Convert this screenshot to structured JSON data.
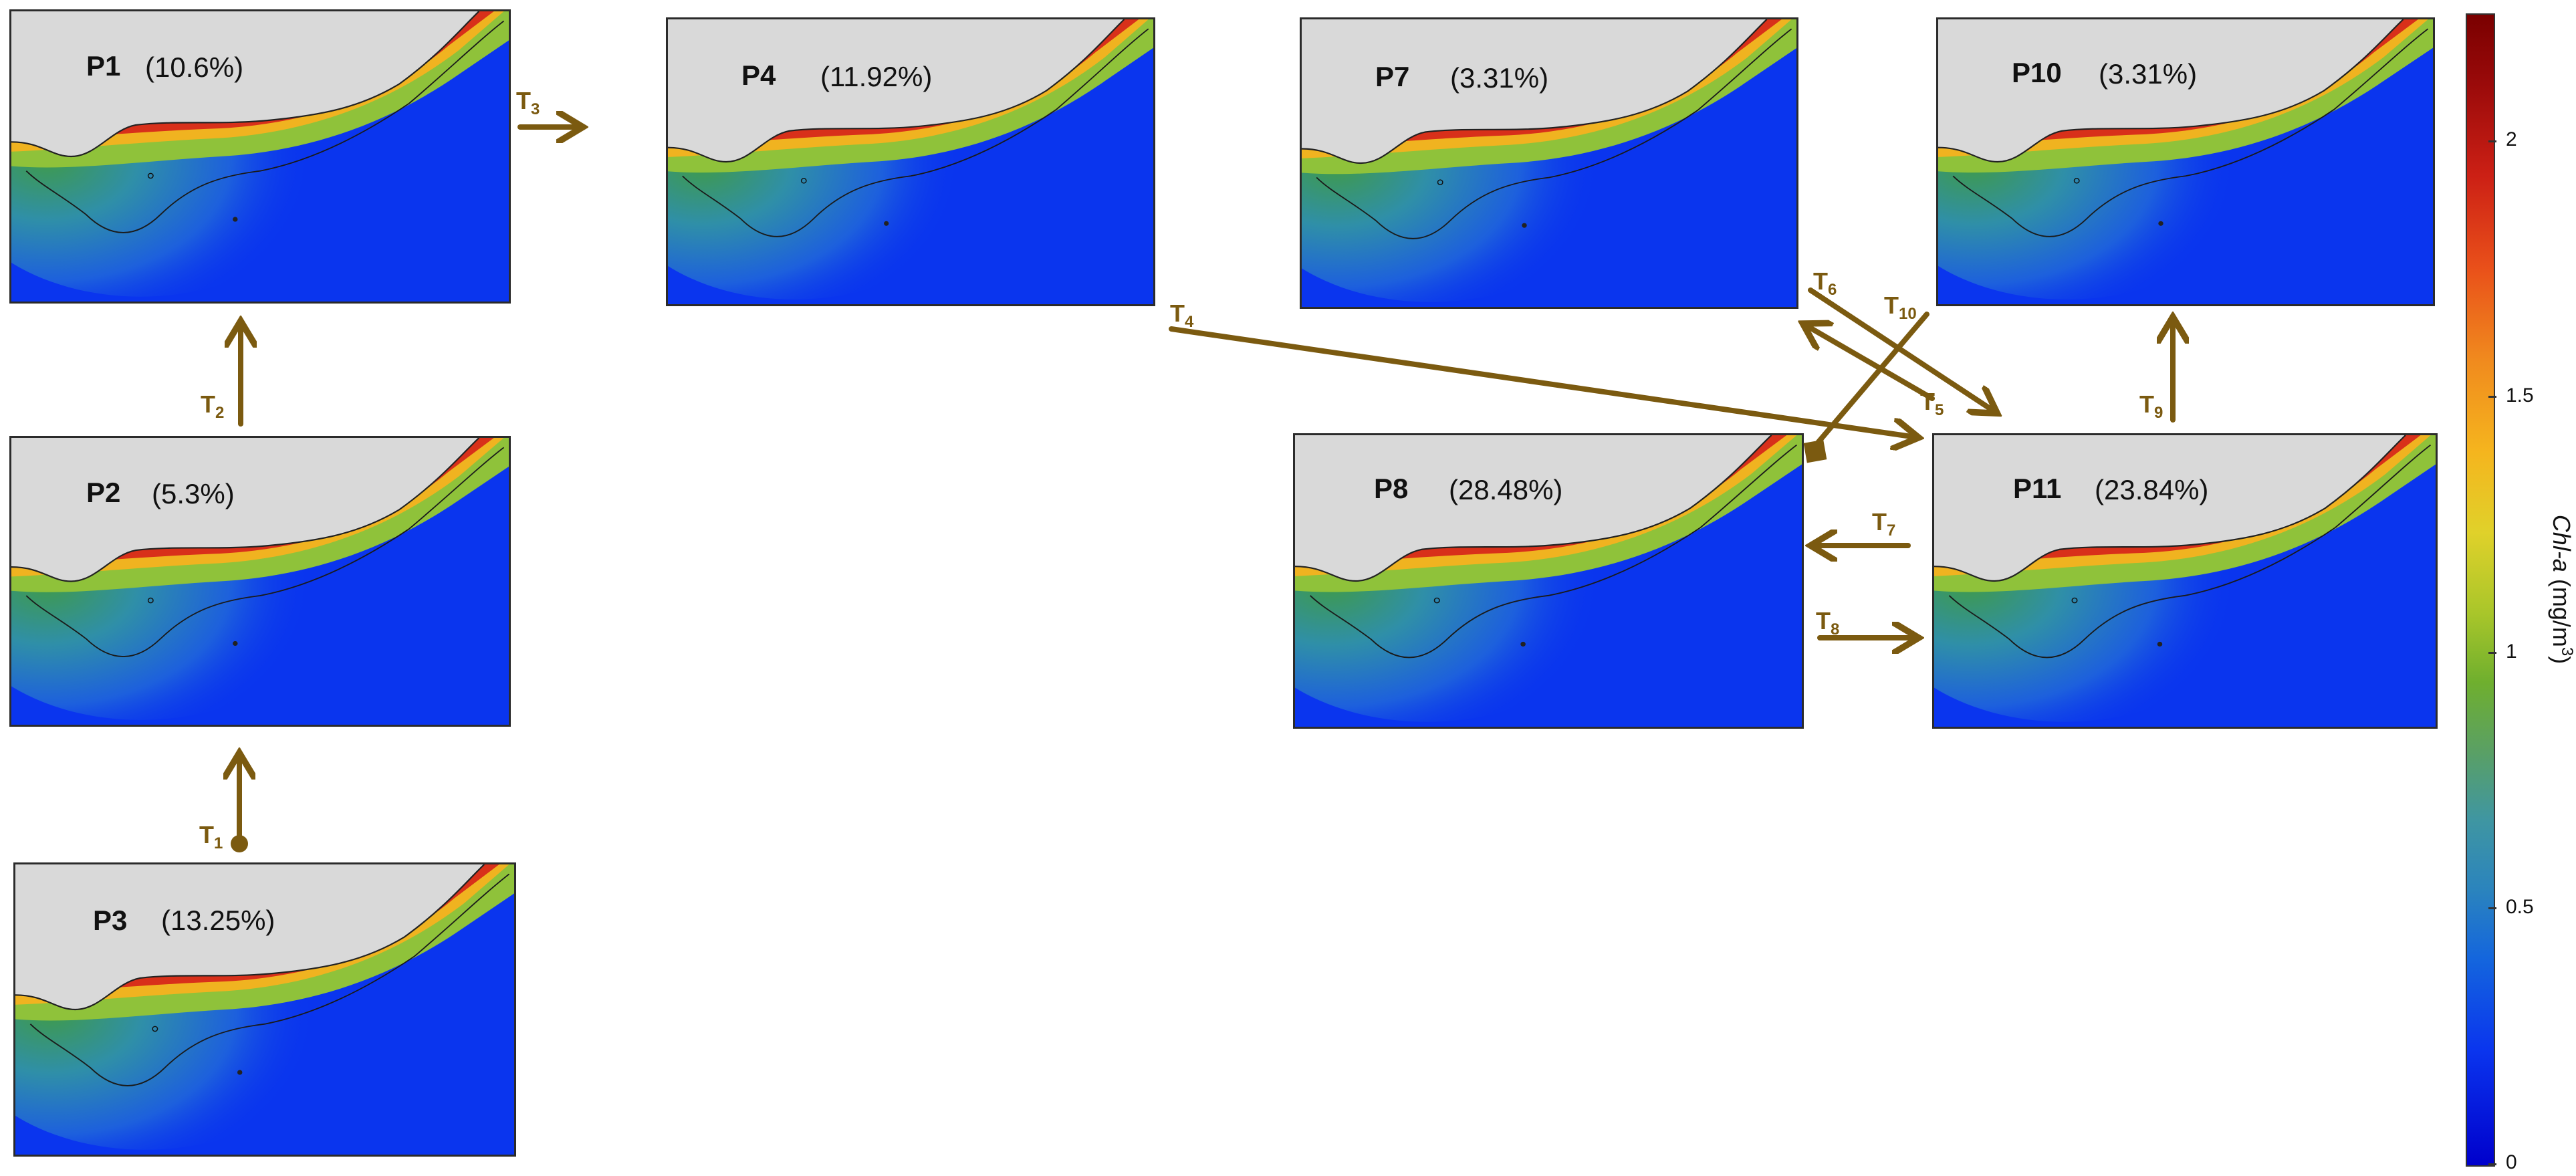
{
  "panels": [
    {
      "id": "P1",
      "label": "P1",
      "percent": "(10.6%)"
    },
    {
      "id": "P2",
      "label": "P2",
      "percent": "(5.3%)"
    },
    {
      "id": "P3",
      "label": "P3",
      "percent": "(13.25%)"
    },
    {
      "id": "P4",
      "label": "P4",
      "percent": "(11.92%)"
    },
    {
      "id": "P7",
      "label": "P7",
      "percent": "(3.31%)"
    },
    {
      "id": "P8",
      "label": "P8",
      "percent": "(28.48%)"
    },
    {
      "id": "P10",
      "label": "P10",
      "percent": "(3.31%)"
    },
    {
      "id": "P11",
      "label": "P11",
      "percent": "(23.84%)"
    }
  ],
  "transitions": [
    {
      "id": "T1",
      "letter": "T",
      "sub": "1"
    },
    {
      "id": "T2",
      "letter": "T",
      "sub": "2"
    },
    {
      "id": "T3",
      "letter": "T",
      "sub": "3"
    },
    {
      "id": "T4",
      "letter": "T",
      "sub": "4"
    },
    {
      "id": "T5",
      "letter": "T",
      "sub": "5"
    },
    {
      "id": "T6",
      "letter": "T",
      "sub": "6"
    },
    {
      "id": "T7",
      "letter": "T",
      "sub": "7"
    },
    {
      "id": "T8",
      "letter": "T",
      "sub": "8"
    },
    {
      "id": "T9",
      "letter": "T",
      "sub": "9"
    },
    {
      "id": "T10",
      "letter": "T",
      "sub": "10"
    }
  ],
  "colorbar": {
    "title_var": "Chl-a",
    "title_unit": "(mg/m",
    "title_exp": "3",
    "title_close": ")",
    "ticks": [
      "0",
      "0.5",
      "1",
      "1.5",
      "2"
    ],
    "range": [
      0,
      2.25
    ]
  },
  "colors": {
    "arrow": "#7b5a10",
    "land": "#d9d9d9",
    "ocean": "#0a35ee"
  }
}
